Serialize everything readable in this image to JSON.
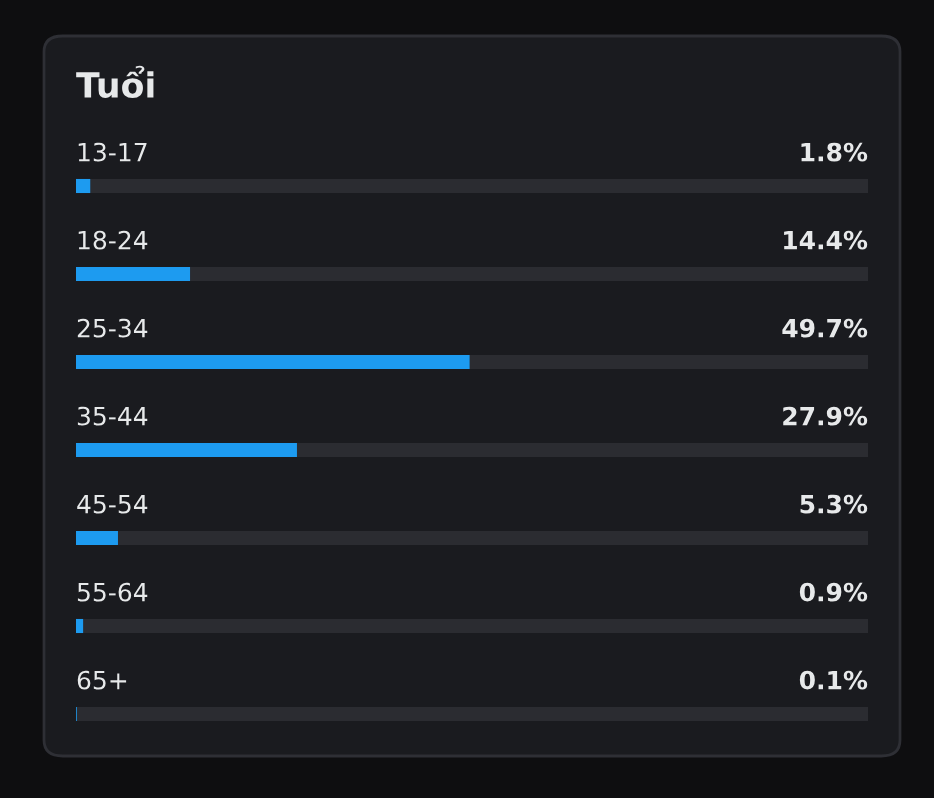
{
  "chart_data": {
    "type": "bar",
    "orientation": "horizontal",
    "title": "Tuổi",
    "categories": [
      "13-17",
      "18-24",
      "25-34",
      "35-44",
      "45-54",
      "55-64",
      "65+"
    ],
    "values": [
      1.8,
      14.4,
      49.7,
      27.9,
      5.3,
      0.9,
      0.1
    ],
    "value_labels": [
      "1.8%",
      "14.4%",
      "49.7%",
      "27.9%",
      "5.3%",
      "0.9%",
      "0.1%"
    ],
    "color": "#1d9bf0",
    "xlim": [
      0,
      100
    ]
  }
}
